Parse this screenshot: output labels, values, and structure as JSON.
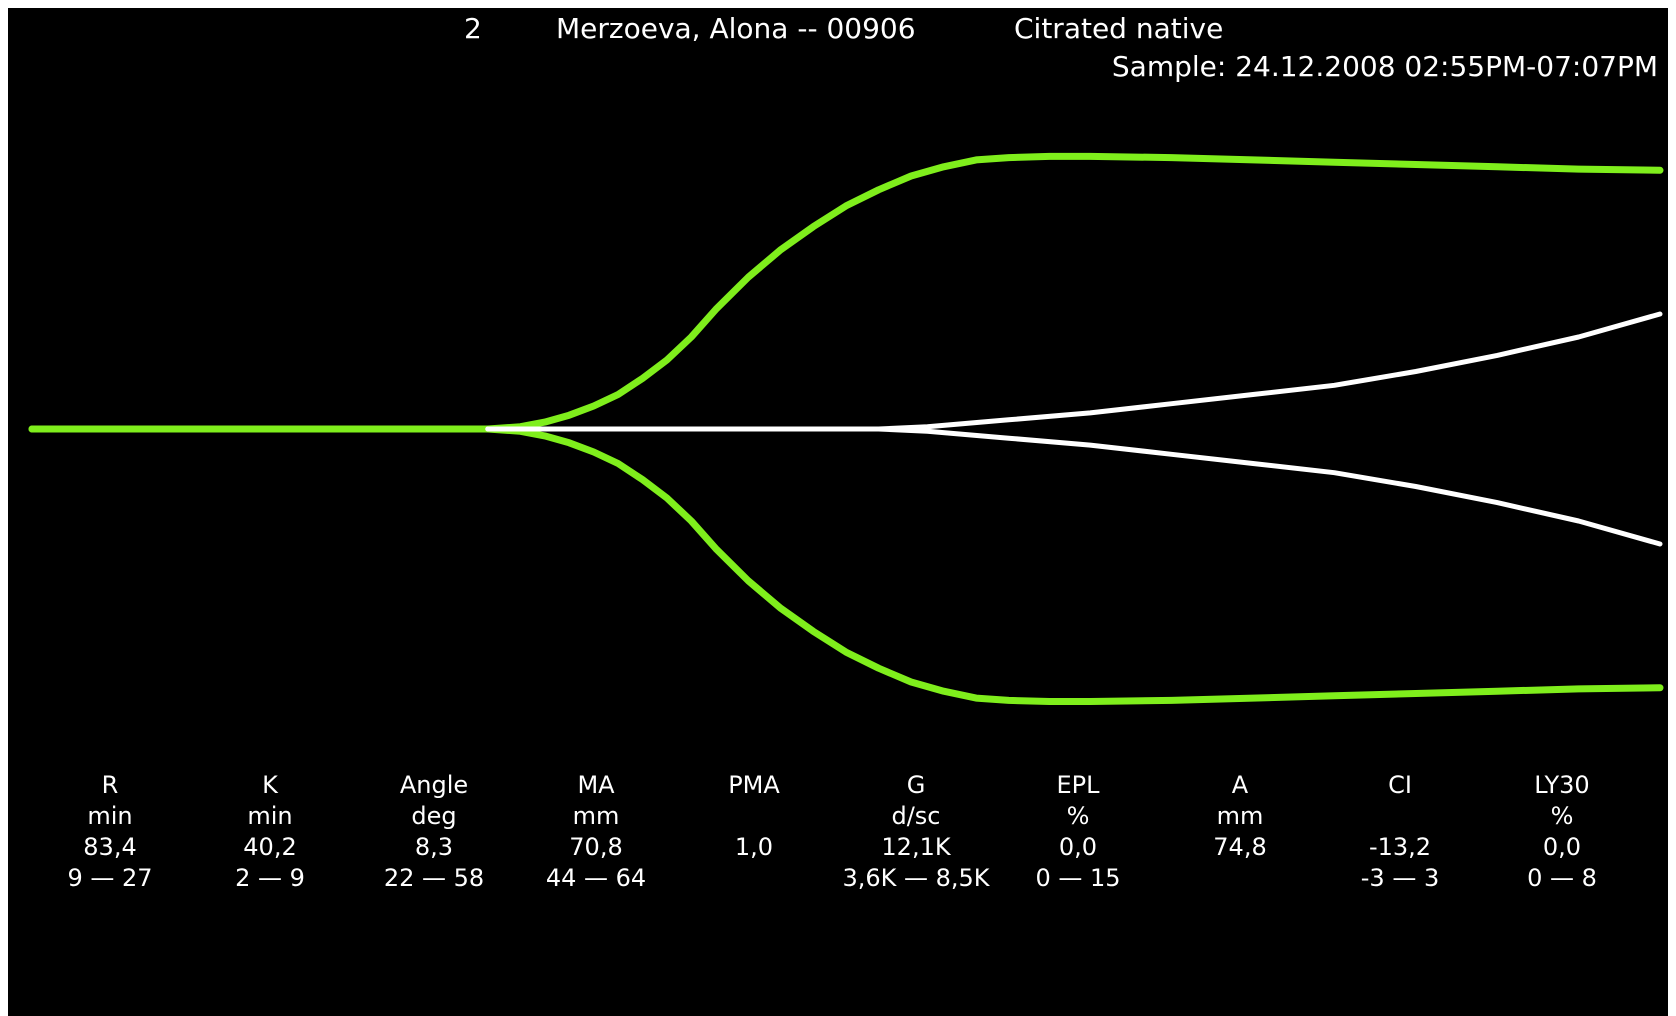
{
  "header": {
    "number": "2",
    "patient": "Merzoeva, Alona -- 00906",
    "sample_type": "Citrated native",
    "sample_time": "Sample: 24.12.2008 02:55PM-07:07PM"
  },
  "colors": {
    "background": "#000000",
    "text": "#ffffff",
    "trace_main": "#7fee1c",
    "trace_reference": "#ffffff"
  },
  "parameters": [
    {
      "name": "R",
      "unit": "min",
      "value": "83,4",
      "range": "9 — 27"
    },
    {
      "name": "K",
      "unit": "min",
      "value": "40,2",
      "range": "2 — 9"
    },
    {
      "name": "Angle",
      "unit": "deg",
      "value": "8,3",
      "range": "22 — 58"
    },
    {
      "name": "MA",
      "unit": "mm",
      "value": "70,8",
      "range": "44 — 64"
    },
    {
      "name": "PMA",
      "unit": "",
      "value": "1,0",
      "range": ""
    },
    {
      "name": "G",
      "unit": "d/sc",
      "value": "12,1K",
      "range": "3,6K — 8,5K"
    },
    {
      "name": "EPL",
      "unit": "%",
      "value": "0,0",
      "range": "0 — 15"
    },
    {
      "name": "A",
      "unit": "mm",
      "value": "74,8",
      "range": ""
    },
    {
      "name": "CI",
      "unit": "",
      "value": "-13,2",
      "range": "-3 — 3"
    },
    {
      "name": "LY30",
      "unit": "%",
      "value": "0,0",
      "range": "0 — 8"
    }
  ],
  "chart_data": {
    "type": "line",
    "title": "",
    "xlabel": "",
    "ylabel": "",
    "grid": false,
    "legend": "none",
    "series": [
      {
        "role": "patient-trace",
        "color": "#7fee1c",
        "x": [
          0,
          0.28,
          0.3,
          0.315,
          0.33,
          0.345,
          0.36,
          0.375,
          0.39,
          0.405,
          0.42,
          0.44,
          0.46,
          0.48,
          0.5,
          0.52,
          0.54,
          0.56,
          0.58,
          0.6,
          0.625,
          0.65,
          0.7,
          0.75,
          0.8,
          0.85,
          0.9,
          0.95,
          1.0
        ],
        "amplitude": [
          0,
          0,
          0.1,
          0.3,
          0.6,
          1.0,
          1.5,
          2.2,
          3.0,
          4.0,
          5.2,
          6.6,
          7.8,
          8.8,
          9.7,
          10.4,
          11.0,
          11.4,
          11.7,
          11.8,
          11.85,
          11.85,
          11.8,
          11.7,
          11.6,
          11.5,
          11.4,
          11.3,
          11.25
        ]
      },
      {
        "role": "reference-trace",
        "color": "#ffffff",
        "x": [
          0.28,
          0.52,
          0.55,
          0.6,
          0.65,
          0.7,
          0.75,
          0.8,
          0.85,
          0.9,
          0.95,
          1.0
        ],
        "amplitude": [
          0,
          0,
          0.1,
          0.4,
          0.7,
          1.1,
          1.5,
          1.9,
          2.5,
          3.2,
          4.0,
          5.0
        ]
      }
    ]
  }
}
